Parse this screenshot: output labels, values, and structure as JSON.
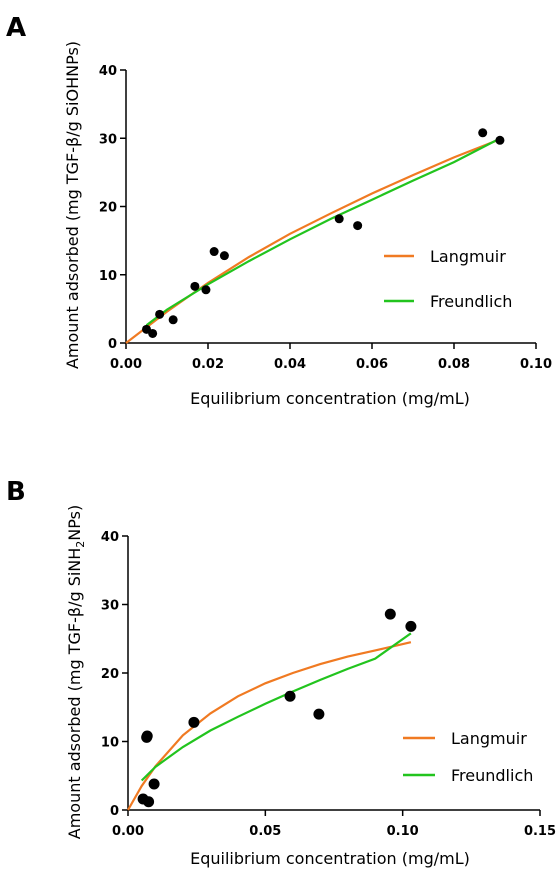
{
  "chart_data": [
    {
      "panel": "A",
      "type": "scatter",
      "xlabel": "Equilibrium concentration (mg/mL)",
      "ylabel": {
        "before": "Amount adsorbed (mg TGF-",
        "beta": "β",
        "after": "/g SiOHNPs)"
      },
      "xlim": [
        0,
        0.1
      ],
      "ylim": [
        0,
        40
      ],
      "xticks": [
        0.0,
        0.02,
        0.04,
        0.06,
        0.08,
        0.1
      ],
      "xtick_labels": [
        "0.00",
        "0.02",
        "0.04",
        "0.06",
        "0.08",
        "0.10"
      ],
      "yticks": [
        0,
        10,
        20,
        30,
        40
      ],
      "ytick_labels": [
        "0",
        "10",
        "20",
        "30",
        "40"
      ],
      "points": [
        [
          0.005,
          2.0
        ],
        [
          0.0065,
          1.4
        ],
        [
          0.0082,
          4.2
        ],
        [
          0.0115,
          3.4
        ],
        [
          0.0168,
          8.3
        ],
        [
          0.0195,
          7.8
        ],
        [
          0.0215,
          13.4
        ],
        [
          0.024,
          12.8
        ],
        [
          0.052,
          18.2
        ],
        [
          0.0565,
          17.2
        ],
        [
          0.087,
          30.8
        ],
        [
          0.0912,
          29.7
        ]
      ],
      "series": [
        {
          "name": "Langmuir",
          "color": "#f07a22",
          "x": [
            0.0,
            0.01,
            0.02,
            0.03,
            0.04,
            0.05,
            0.06,
            0.07,
            0.08,
            0.091
          ],
          "y": [
            0.0,
            4.6,
            8.8,
            12.6,
            16.0,
            19.0,
            21.9,
            24.6,
            27.2,
            29.8
          ]
        },
        {
          "name": "Freundlich",
          "color": "#22c41e",
          "x": [
            0.005,
            0.01,
            0.02,
            0.03,
            0.04,
            0.05,
            0.06,
            0.07,
            0.08,
            0.091
          ],
          "y": [
            2.6,
            4.9,
            8.6,
            12.0,
            15.2,
            18.2,
            21.0,
            23.8,
            26.5,
            29.9
          ]
        }
      ],
      "legend": {
        "position": "right",
        "labels": [
          "Langmuir",
          "Freundlich"
        ]
      }
    },
    {
      "panel": "B",
      "type": "scatter",
      "xlabel": "Equilibrium concentration (mg/mL)",
      "ylabel": {
        "before": "Amount adsorbed (mg TGF-",
        "beta": "β",
        "middle": "/g SiNH",
        "sub": "2",
        "after": "NPs)"
      },
      "xlim": [
        0,
        0.15
      ],
      "ylim": [
        0,
        40
      ],
      "xticks": [
        0.0,
        0.05,
        0.1,
        0.15
      ],
      "xtick_labels": [
        "0.00",
        "0.05",
        "0.10",
        "0.15"
      ],
      "yticks": [
        0,
        10,
        20,
        30,
        40
      ],
      "ytick_labels": [
        "0",
        "10",
        "20",
        "30",
        "40"
      ],
      "points": [
        [
          0.0055,
          1.6
        ],
        [
          0.0075,
          1.2
        ],
        [
          0.007,
          10.8
        ],
        [
          0.0068,
          10.6
        ],
        [
          0.0095,
          3.8
        ],
        [
          0.024,
          12.8
        ],
        [
          0.059,
          16.6
        ],
        [
          0.0695,
          14.0
        ],
        [
          0.0955,
          28.6
        ],
        [
          0.103,
          26.8
        ]
      ],
      "series": [
        {
          "name": "Langmuir",
          "color": "#f07a22",
          "x": [
            0.0,
            0.005,
            0.01,
            0.02,
            0.03,
            0.04,
            0.05,
            0.06,
            0.07,
            0.08,
            0.09,
            0.103
          ],
          "y": [
            0.0,
            3.5,
            6.4,
            10.9,
            14.1,
            16.6,
            18.5,
            20.0,
            21.3,
            22.4,
            23.3,
            24.5
          ]
        },
        {
          "name": "Freundlich",
          "color": "#22c41e",
          "x": [
            0.005,
            0.01,
            0.02,
            0.03,
            0.04,
            0.05,
            0.06,
            0.07,
            0.08,
            0.09,
            0.103
          ],
          "y": [
            4.3,
            6.3,
            9.2,
            11.6,
            13.6,
            15.5,
            17.3,
            19.0,
            20.6,
            22.1,
            25.8
          ]
        }
      ],
      "legend": {
        "position": "right",
        "labels": [
          "Langmuir",
          "Freundlich"
        ]
      }
    }
  ]
}
